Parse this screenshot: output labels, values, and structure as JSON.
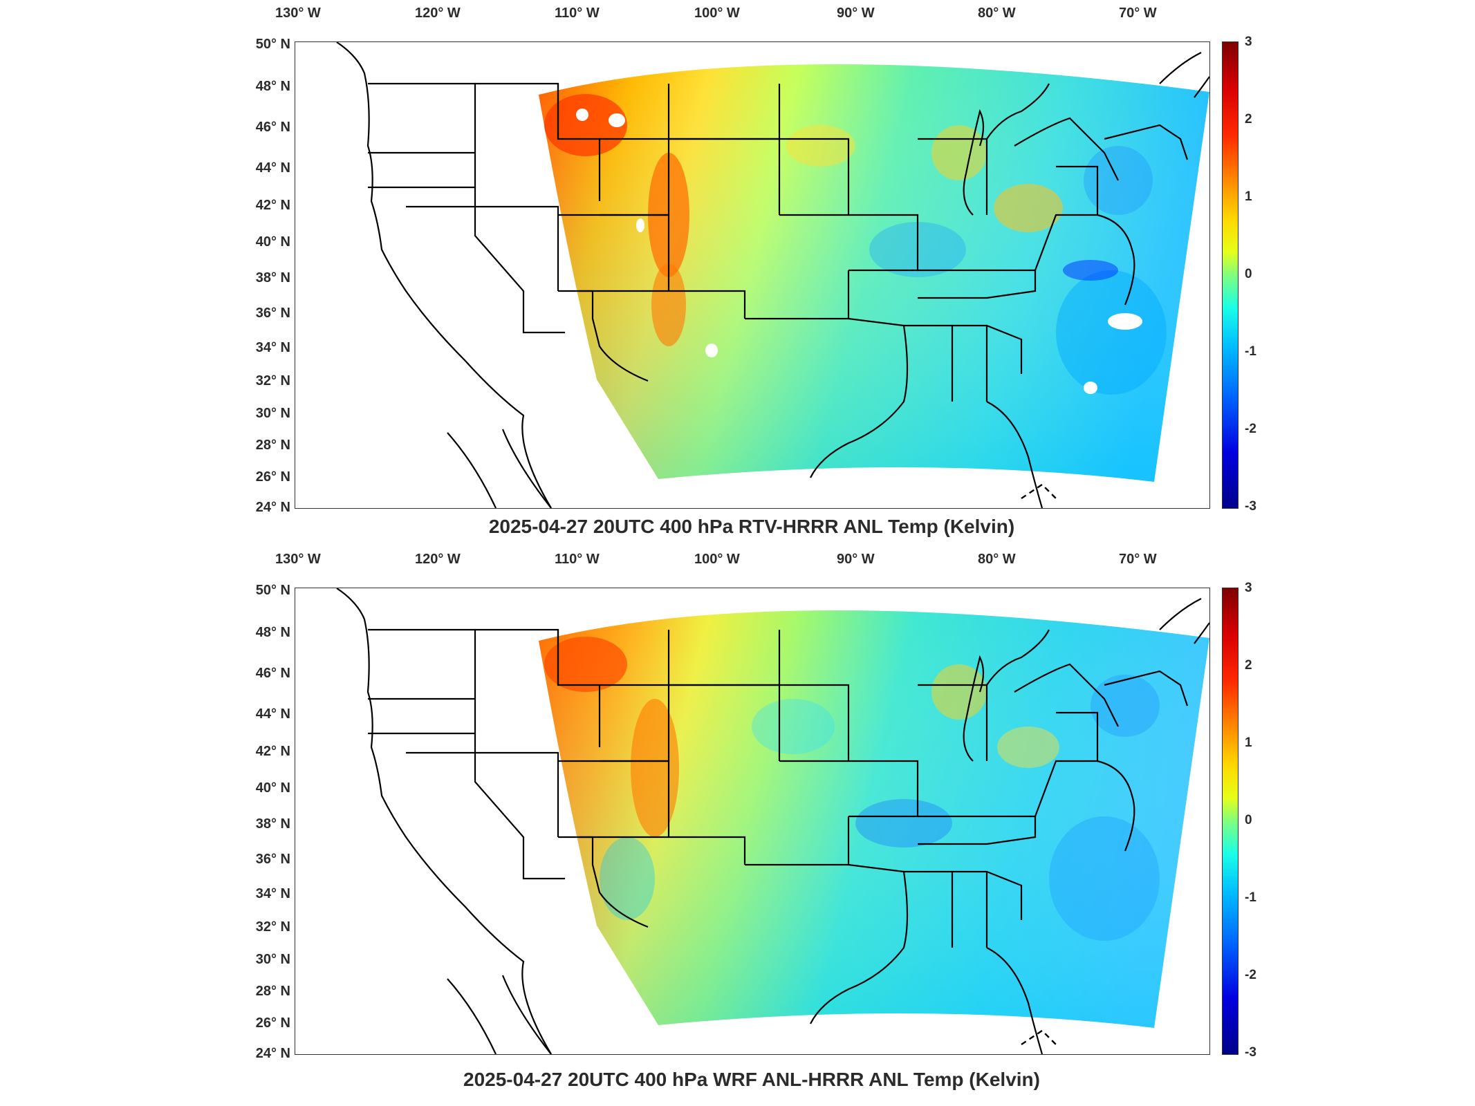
{
  "panels": [
    {
      "title": "2025-04-27 20UTC 400 hPa RTV-HRRR ANL Temp (Kelvin)",
      "lon_ticks": [
        "130° W",
        "120° W",
        "110° W",
        "100° W",
        "90° W",
        "80° W",
        "70° W"
      ],
      "lat_ticks": [
        "50° N",
        "48° N",
        "46° N",
        "44° N",
        "42° N",
        "40° N",
        "38° N",
        "36° N",
        "34° N",
        "32° N",
        "30° N",
        "28° N",
        "26° N",
        "24° N"
      ],
      "colorbar_ticks": [
        "3",
        "2",
        "1",
        "0",
        "-1",
        "-2",
        "-3"
      ],
      "colorbar_range": [
        -3,
        3
      ],
      "colormap": "jet",
      "field_description_colors": {
        "west_warm": "#ff8c1a",
        "central": "#6fefa0",
        "east_cool": "#2fd3ff"
      }
    },
    {
      "title": "2025-04-27 20UTC 400 hPa WRF ANL-HRRR ANL Temp (Kelvin)",
      "lon_ticks": [
        "130° W",
        "120° W",
        "110° W",
        "100° W",
        "90° W",
        "80° W",
        "70° W"
      ],
      "lat_ticks": [
        "50° N",
        "48° N",
        "46° N",
        "44° N",
        "42° N",
        "40° N",
        "38° N",
        "36° N",
        "34° N",
        "32° N",
        "30° N",
        "28° N",
        "26° N",
        "24° N"
      ],
      "colorbar_ticks": [
        "3",
        "2",
        "1",
        "0",
        "-1",
        "-2",
        "-3"
      ],
      "colorbar_range": [
        -3,
        3
      ],
      "colormap": "jet",
      "field_description_colors": {
        "west_warm": "#ff9a1a",
        "central": "#8cf08c",
        "east_cool": "#33ccff"
      }
    }
  ]
}
